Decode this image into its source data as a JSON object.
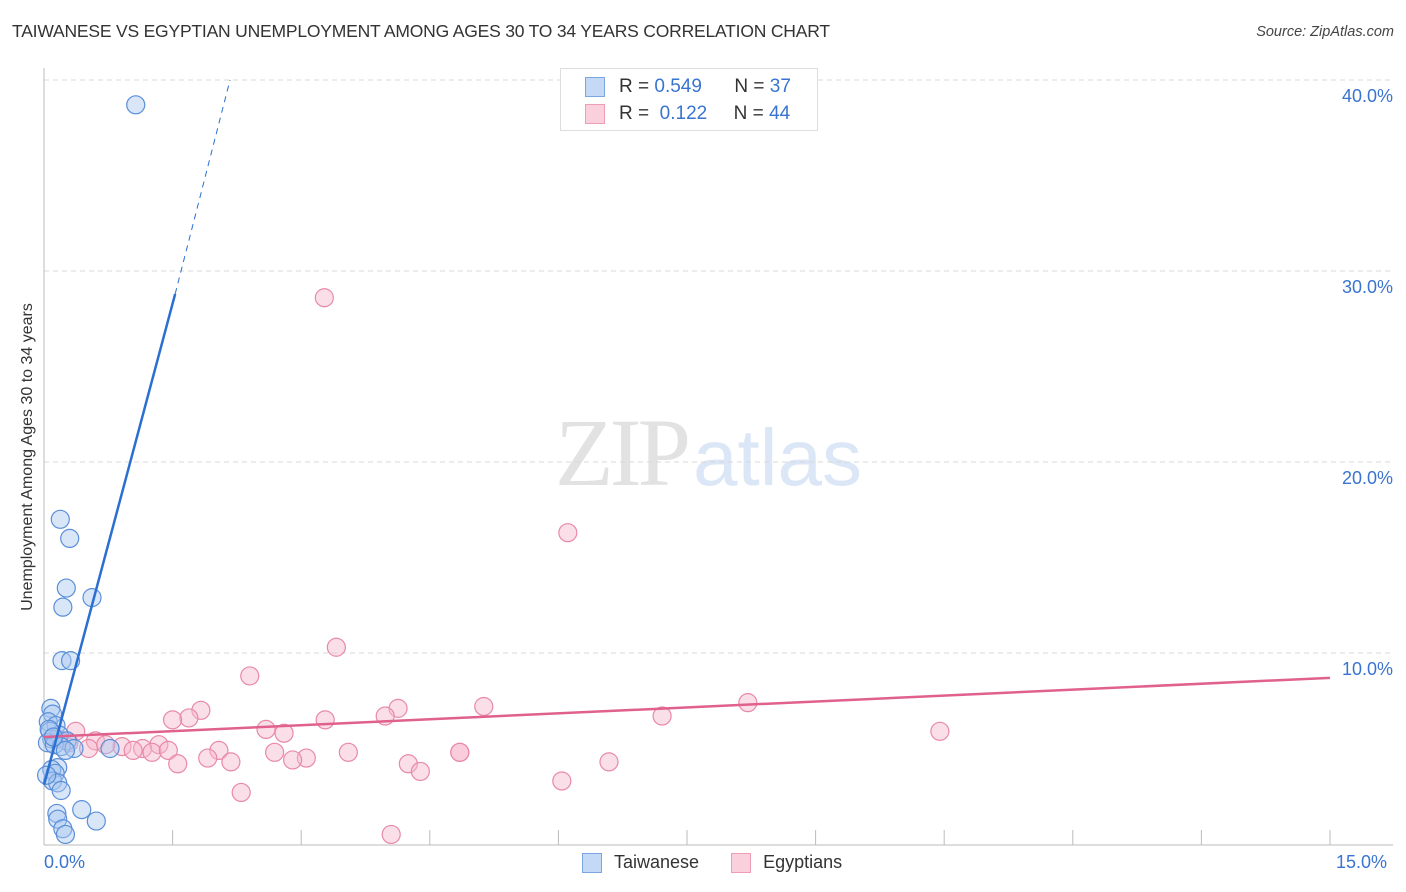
{
  "header": {
    "title": "TAIWANESE VS EGYPTIAN UNEMPLOYMENT AMONG AGES 30 TO 34 YEARS CORRELATION CHART",
    "source": "Source: ZipAtlas.com"
  },
  "watermark": {
    "zip": "ZIP",
    "atlas": "atlas"
  },
  "legend": {
    "rows": [
      {
        "r_label": "R =",
        "r_value": "0.549",
        "n_label": "N =",
        "n_value": "37",
        "color": "#a9c8f0"
      },
      {
        "r_label": "R =",
        "r_value": "0.122",
        "n_label": "N =",
        "n_value": "44",
        "color": "#f7b8cb"
      }
    ]
  },
  "bottom_legend": [
    {
      "label": "Taiwanese",
      "color": "#a9c8f0"
    },
    {
      "label": "Egyptians",
      "color": "#f7b8cb"
    }
  ],
  "axes": {
    "ylabel": "Unemployment Among Ages 30 to 34 years",
    "yticks": [
      "40.0%",
      "30.0%",
      "20.0%",
      "10.0%"
    ],
    "xticks": [
      "0.0%",
      "15.0%"
    ]
  },
  "colors": {
    "taiwanese_fill": "#a9c8f0",
    "taiwanese_stroke": "#5b8fd9",
    "taiwanese_line": "#2a6fd1",
    "egyptians_fill": "#f7b8cb",
    "egyptians_stroke": "#e889a8",
    "egyptians_line": "#e0608e",
    "tick_label": "#3a74d0"
  },
  "chart_data": {
    "type": "scatter",
    "title": "TAIWANESE VS EGYPTIAN UNEMPLOYMENT AMONG AGES 30 TO 34 YEARS CORRELATION CHART",
    "xlabel": "",
    "ylabel": "Unemployment Among Ages 30 to 34 years",
    "xlim": [
      0,
      15
    ],
    "ylim": [
      0,
      41
    ],
    "x_ticks": [
      "0.0%",
      "15.0%"
    ],
    "y_ticks": [
      "10.0%",
      "20.0%",
      "30.0%",
      "40.0%"
    ],
    "grid": true,
    "legend_position": "top-center and bottom",
    "series": [
      {
        "name": "Taiwanese",
        "R": 0.549,
        "N": 37,
        "points": [
          [
            1.07,
            38.7
          ],
          [
            0.19,
            17.0
          ],
          [
            0.3,
            16.0
          ],
          [
            0.26,
            13.4
          ],
          [
            0.56,
            12.9
          ],
          [
            0.22,
            12.4
          ],
          [
            0.21,
            9.6
          ],
          [
            0.31,
            9.6
          ],
          [
            0.08,
            7.1
          ],
          [
            0.1,
            6.8
          ],
          [
            0.05,
            6.4
          ],
          [
            0.14,
            6.2
          ],
          [
            0.07,
            5.9
          ],
          [
            0.18,
            5.7
          ],
          [
            0.09,
            5.5
          ],
          [
            0.27,
            5.4
          ],
          [
            0.04,
            5.3
          ],
          [
            0.12,
            5.2
          ],
          [
            0.2,
            5.1
          ],
          [
            0.35,
            5.0
          ],
          [
            0.77,
            5.0
          ],
          [
            0.25,
            4.9
          ],
          [
            0.16,
            4.0
          ],
          [
            0.09,
            3.9
          ],
          [
            0.13,
            3.7
          ],
          [
            0.1,
            3.3
          ],
          [
            0.16,
            3.2
          ],
          [
            0.2,
            2.8
          ],
          [
            0.15,
            1.6
          ],
          [
            0.16,
            1.3
          ],
          [
            0.44,
            1.8
          ],
          [
            0.61,
            1.2
          ],
          [
            0.22,
            0.8
          ],
          [
            0.25,
            0.5
          ],
          [
            0.03,
            3.6
          ],
          [
            0.06,
            6.0
          ],
          [
            0.11,
            5.6
          ]
        ],
        "trendline": {
          "x": [
            0.0,
            1.53
          ],
          "y": [
            3.1,
            28.8
          ],
          "dashed_extension_to": [
            2.17,
            40.0
          ]
        }
      },
      {
        "name": "Egyptians",
        "R": 0.122,
        "N": 44,
        "points": [
          [
            3.27,
            28.6
          ],
          [
            6.11,
            16.3
          ],
          [
            3.41,
            10.3
          ],
          [
            2.4,
            8.8
          ],
          [
            1.83,
            7.0
          ],
          [
            4.13,
            7.1
          ],
          [
            5.13,
            7.2
          ],
          [
            8.21,
            7.4
          ],
          [
            7.21,
            6.7
          ],
          [
            3.28,
            6.5
          ],
          [
            1.69,
            6.6
          ],
          [
            1.5,
            6.5
          ],
          [
            3.98,
            6.7
          ],
          [
            0.37,
            5.9
          ],
          [
            2.59,
            6.0
          ],
          [
            2.8,
            5.8
          ],
          [
            0.6,
            5.4
          ],
          [
            0.91,
            5.1
          ],
          [
            1.34,
            5.2
          ],
          [
            1.15,
            5.0
          ],
          [
            1.26,
            4.8
          ],
          [
            1.04,
            4.9
          ],
          [
            1.45,
            4.9
          ],
          [
            3.55,
            4.8
          ],
          [
            4.85,
            4.8
          ],
          [
            2.69,
            4.8
          ],
          [
            3.06,
            4.5
          ],
          [
            2.9,
            4.4
          ],
          [
            2.04,
            4.9
          ],
          [
            4.85,
            4.8
          ],
          [
            1.91,
            4.5
          ],
          [
            2.18,
            4.3
          ],
          [
            4.25,
            4.2
          ],
          [
            1.56,
            4.2
          ],
          [
            4.39,
            3.8
          ],
          [
            6.59,
            4.3
          ],
          [
            6.04,
            3.3
          ],
          [
            2.3,
            2.7
          ],
          [
            4.05,
            0.5
          ],
          [
            10.45,
            5.9
          ],
          [
            0.52,
            5.0
          ],
          [
            0.72,
            5.2
          ],
          [
            0.29,
            5.3
          ],
          [
            0.16,
            5.5
          ]
        ],
        "trendline": {
          "x": [
            0.0,
            15.0
          ],
          "y": [
            5.6,
            8.7
          ]
        }
      }
    ]
  }
}
